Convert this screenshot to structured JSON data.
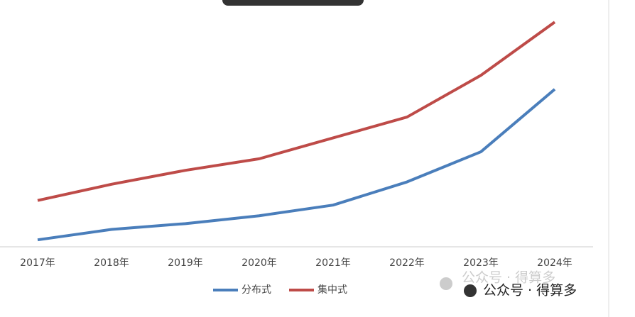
{
  "chart_data": {
    "type": "line",
    "categories": [
      "2017年",
      "2018年",
      "2019年",
      "2020年",
      "2021年",
      "2022年",
      "2023年",
      "2024年"
    ],
    "series": [
      {
        "name": "分布式",
        "color": "#4a7ebb",
        "values": [
          3,
          7.5,
          10,
          13.4,
          18,
          28,
          41,
          68
        ]
      },
      {
        "name": "集中式",
        "color": "#be4b48",
        "values": [
          20,
          27,
          33,
          38,
          47,
          56,
          74,
          97
        ]
      }
    ],
    "ylim": [
      0,
      105
    ]
  },
  "watermarks": [
    "公众号 · 得算多",
    "公众号 · 得算多"
  ]
}
